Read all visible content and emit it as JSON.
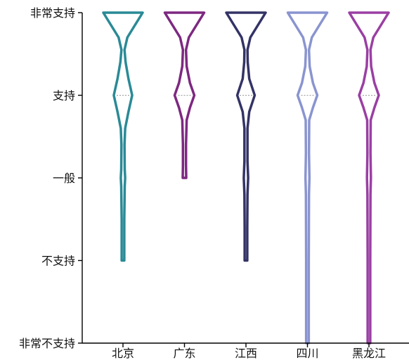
{
  "chart_data": {
    "type": "violin",
    "categories": [
      "北京",
      "广东",
      "江西",
      "四川",
      "黑龙江"
    ],
    "y_tick_labels": [
      "非常不支持",
      "不支持",
      "一般",
      "支持",
      "非常支持"
    ],
    "ylim": [
      1,
      5
    ],
    "grid": false,
    "series": [
      {
        "color": "#2a8a96",
        "range": [
          2,
          5
        ],
        "median": 4,
        "profile": [
          [
            2.0,
            0.6
          ],
          [
            2.5,
            0.6
          ],
          [
            2.9,
            0.8
          ],
          [
            3.0,
            1.0
          ],
          [
            3.1,
            0.8
          ],
          [
            3.4,
            0.7
          ],
          [
            3.6,
            1.0
          ],
          [
            3.8,
            2.5
          ],
          [
            4.0,
            4.2
          ],
          [
            4.2,
            2.5
          ],
          [
            4.4,
            1.2
          ],
          [
            4.55,
            0.7
          ],
          [
            4.7,
            2.0
          ],
          [
            4.85,
            5.5
          ],
          [
            5.0,
            9.0
          ]
        ]
      },
      {
        "color": "#7d2880",
        "range": [
          3,
          5
        ],
        "median": 4,
        "profile": [
          [
            3.0,
            0.8
          ],
          [
            3.15,
            0.7
          ],
          [
            3.4,
            0.7
          ],
          [
            3.7,
            1.0
          ],
          [
            3.85,
            2.5
          ],
          [
            4.0,
            4.5
          ],
          [
            4.15,
            2.5
          ],
          [
            4.35,
            1.0
          ],
          [
            4.55,
            0.7
          ],
          [
            4.7,
            2.0
          ],
          [
            4.85,
            5.5
          ],
          [
            5.0,
            9.0
          ]
        ]
      },
      {
        "color": "#333366",
        "range": [
          2,
          5
        ],
        "median": 4,
        "profile": [
          [
            2.0,
            0.6
          ],
          [
            2.4,
            0.6
          ],
          [
            2.8,
            0.7
          ],
          [
            3.0,
            1.0
          ],
          [
            3.2,
            0.7
          ],
          [
            3.6,
            0.7
          ],
          [
            3.8,
            1.5
          ],
          [
            4.0,
            4.0
          ],
          [
            4.2,
            1.5
          ],
          [
            4.4,
            0.8
          ],
          [
            4.55,
            0.7
          ],
          [
            4.7,
            2.0
          ],
          [
            4.85,
            5.5
          ],
          [
            5.0,
            9.0
          ]
        ]
      },
      {
        "color": "#8a94d0",
        "range": [
          1,
          5
        ],
        "median": 4,
        "profile": [
          [
            1.0,
            0.6
          ],
          [
            2.0,
            0.6
          ],
          [
            2.8,
            0.7
          ],
          [
            3.0,
            0.9
          ],
          [
            3.3,
            0.7
          ],
          [
            3.7,
            0.8
          ],
          [
            3.85,
            2.5
          ],
          [
            4.0,
            4.5
          ],
          [
            4.15,
            2.5
          ],
          [
            4.35,
            1.0
          ],
          [
            4.55,
            0.7
          ],
          [
            4.7,
            2.0
          ],
          [
            4.85,
            5.5
          ],
          [
            5.0,
            9.0
          ]
        ]
      },
      {
        "color": "#9a3fa3",
        "range": [
          1,
          5
        ],
        "median": 4,
        "profile": [
          [
            1.0,
            0.6
          ],
          [
            2.0,
            0.6
          ],
          [
            2.8,
            0.7
          ],
          [
            3.0,
            0.9
          ],
          [
            3.3,
            0.7
          ],
          [
            3.7,
            0.8
          ],
          [
            3.85,
            2.5
          ],
          [
            4.0,
            4.5
          ],
          [
            4.15,
            2.5
          ],
          [
            4.35,
            1.0
          ],
          [
            4.55,
            0.7
          ],
          [
            4.7,
            2.0
          ],
          [
            4.85,
            5.5
          ],
          [
            5.0,
            9.0
          ]
        ]
      }
    ]
  }
}
